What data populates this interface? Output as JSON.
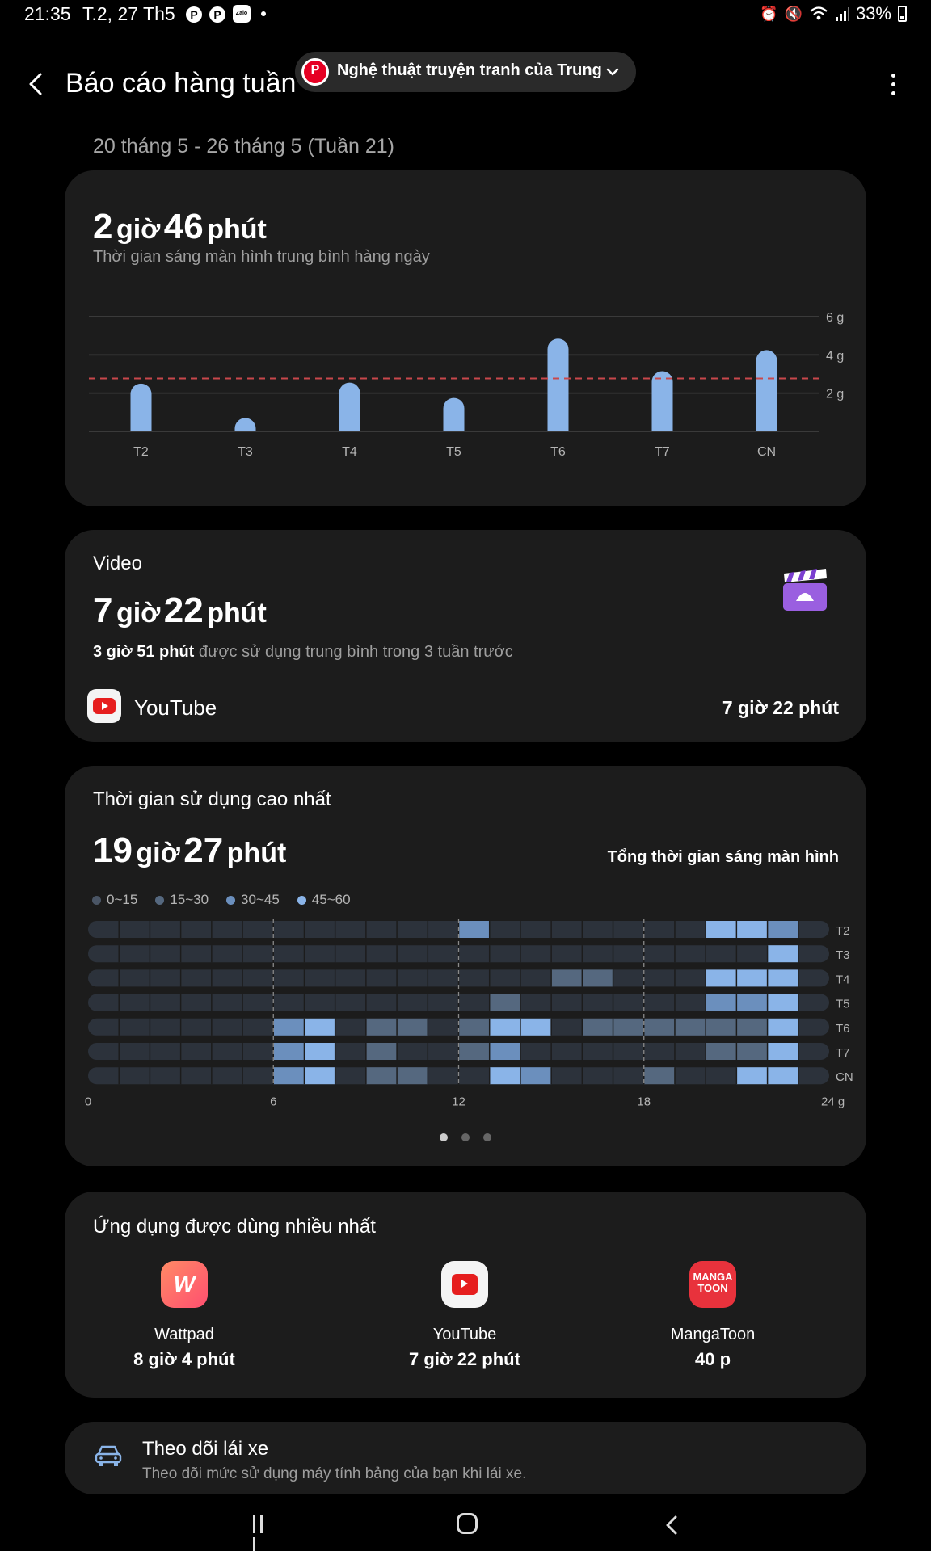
{
  "status_bar": {
    "time": "21:35",
    "date": "T.2, 27 Th5",
    "notif_icons": [
      "pinterest-icon",
      "pinterest-icon",
      "zalo-icon"
    ],
    "zalo_label": "Zalo",
    "battery": "33%",
    "right_icons": [
      "alarm-icon",
      "mute-icon",
      "wifi-icon",
      "signal-icon",
      "battery-icon"
    ]
  },
  "header": {
    "title": "Báo cáo hàng tuần",
    "account_label": "Nghệ thuật truyện tranh của Trung"
  },
  "week_range": "20 tháng 5 - 26 tháng 5 (Tuần 21)",
  "daily_card": {
    "time_h": "2",
    "unit_h": "giờ",
    "time_m": "46",
    "unit_m": "phút",
    "subtitle": "Thời gian sáng màn hình trung bình hàng ngày"
  },
  "chart_data": {
    "type": "bar",
    "categories": [
      "T2",
      "T3",
      "T4",
      "T5",
      "T6",
      "T7",
      "CN"
    ],
    "values": [
      2.5,
      0.7,
      2.55,
      1.75,
      4.85,
      3.15,
      4.25
    ],
    "average": 2.77,
    "ylim": [
      0,
      6
    ],
    "y_ticks": [
      2,
      4,
      6
    ],
    "y_tick_labels": [
      "2 g",
      "4 g",
      "6 g"
    ],
    "bar_color": "#8ab4e8",
    "average_line_color": "#c9474b",
    "grid": true
  },
  "video_card": {
    "label": "Video",
    "time_h": "7",
    "unit_h": "giờ",
    "time_m": "22",
    "unit_m": "phút",
    "sub_bold": "3 giờ 51 phút",
    "sub_rest": " được sử dụng trung bình trong 3 tuần trước",
    "app_name": "YouTube",
    "app_time": "7 giờ 22 phút"
  },
  "peak_card": {
    "label": "Thời gian sử dụng cao nhất",
    "time_h": "19",
    "unit_h": "giờ",
    "time_m": "27",
    "unit_m": "phút",
    "right_label": "Tổng thời gian sáng màn hình",
    "legend": [
      {
        "label": "0~15",
        "color": "#4a5565"
      },
      {
        "label": "15~30",
        "color": "#55687f"
      },
      {
        "label": "30~45",
        "color": "#6b8fbd"
      },
      {
        "label": "45~60",
        "color": "#8ab4e8"
      }
    ],
    "heatmap": {
      "rows": [
        "T2",
        "T3",
        "T4",
        "T5",
        "T6",
        "T7",
        "CN"
      ],
      "x_ticks": [
        "0",
        "6",
        "12",
        "18",
        "24 g"
      ],
      "hours_per_row": 24,
      "levels_legend": "0 = none, 1 = 0~15, 2 = 15~30, 3 = 30~45, 4 = 45~60",
      "levels": [
        [
          0,
          0,
          0,
          0,
          0,
          0,
          0,
          0,
          0,
          0,
          0,
          0,
          3,
          0,
          0,
          0,
          0,
          0,
          0,
          0,
          4,
          4,
          3,
          0
        ],
        [
          0,
          0,
          0,
          0,
          0,
          0,
          0,
          0,
          0,
          0,
          0,
          0,
          0,
          0,
          0,
          0,
          0,
          0,
          0,
          0,
          0,
          0,
          4,
          0
        ],
        [
          0,
          0,
          0,
          0,
          0,
          0,
          0,
          0,
          0,
          0,
          0,
          0,
          0,
          0,
          0,
          2,
          2,
          0,
          0,
          0,
          4,
          4,
          4,
          0
        ],
        [
          0,
          0,
          0,
          0,
          0,
          0,
          0,
          0,
          0,
          0,
          0,
          0,
          0,
          2,
          0,
          0,
          0,
          0,
          0,
          0,
          3,
          3,
          4,
          0
        ],
        [
          0,
          0,
          0,
          0,
          0,
          0,
          3,
          4,
          0,
          2,
          2,
          0,
          2,
          4,
          4,
          0,
          2,
          2,
          2,
          2,
          2,
          2,
          4,
          0
        ],
        [
          0,
          0,
          0,
          0,
          0,
          0,
          3,
          4,
          0,
          2,
          0,
          0,
          2,
          3,
          0,
          0,
          0,
          0,
          0,
          0,
          2,
          2,
          4,
          0
        ],
        [
          0,
          0,
          0,
          0,
          0,
          0,
          3,
          4,
          0,
          2,
          2,
          0,
          0,
          4,
          3,
          0,
          0,
          0,
          2,
          0,
          0,
          4,
          4,
          0
        ]
      ]
    },
    "pager_count": 3,
    "pager_active": 0
  },
  "top_apps_card": {
    "label": "Ứng dụng được dùng nhiều nhất",
    "apps": [
      {
        "name": "Wattpad",
        "time": "8 giờ 4 phút",
        "icon": "wattpad-icon"
      },
      {
        "name": "YouTube",
        "time": "7 giờ 22 phút",
        "icon": "youtube-icon"
      },
      {
        "name": "MangaToon",
        "time": "40 p",
        "icon": "mangatoon-icon",
        "icon_text": "MANGA TOON"
      }
    ]
  },
  "driving_card": {
    "title": "Theo dõi lái xe",
    "subtitle": "Theo dõi mức sử dụng máy tính bảng của bạn khi lái xe."
  }
}
